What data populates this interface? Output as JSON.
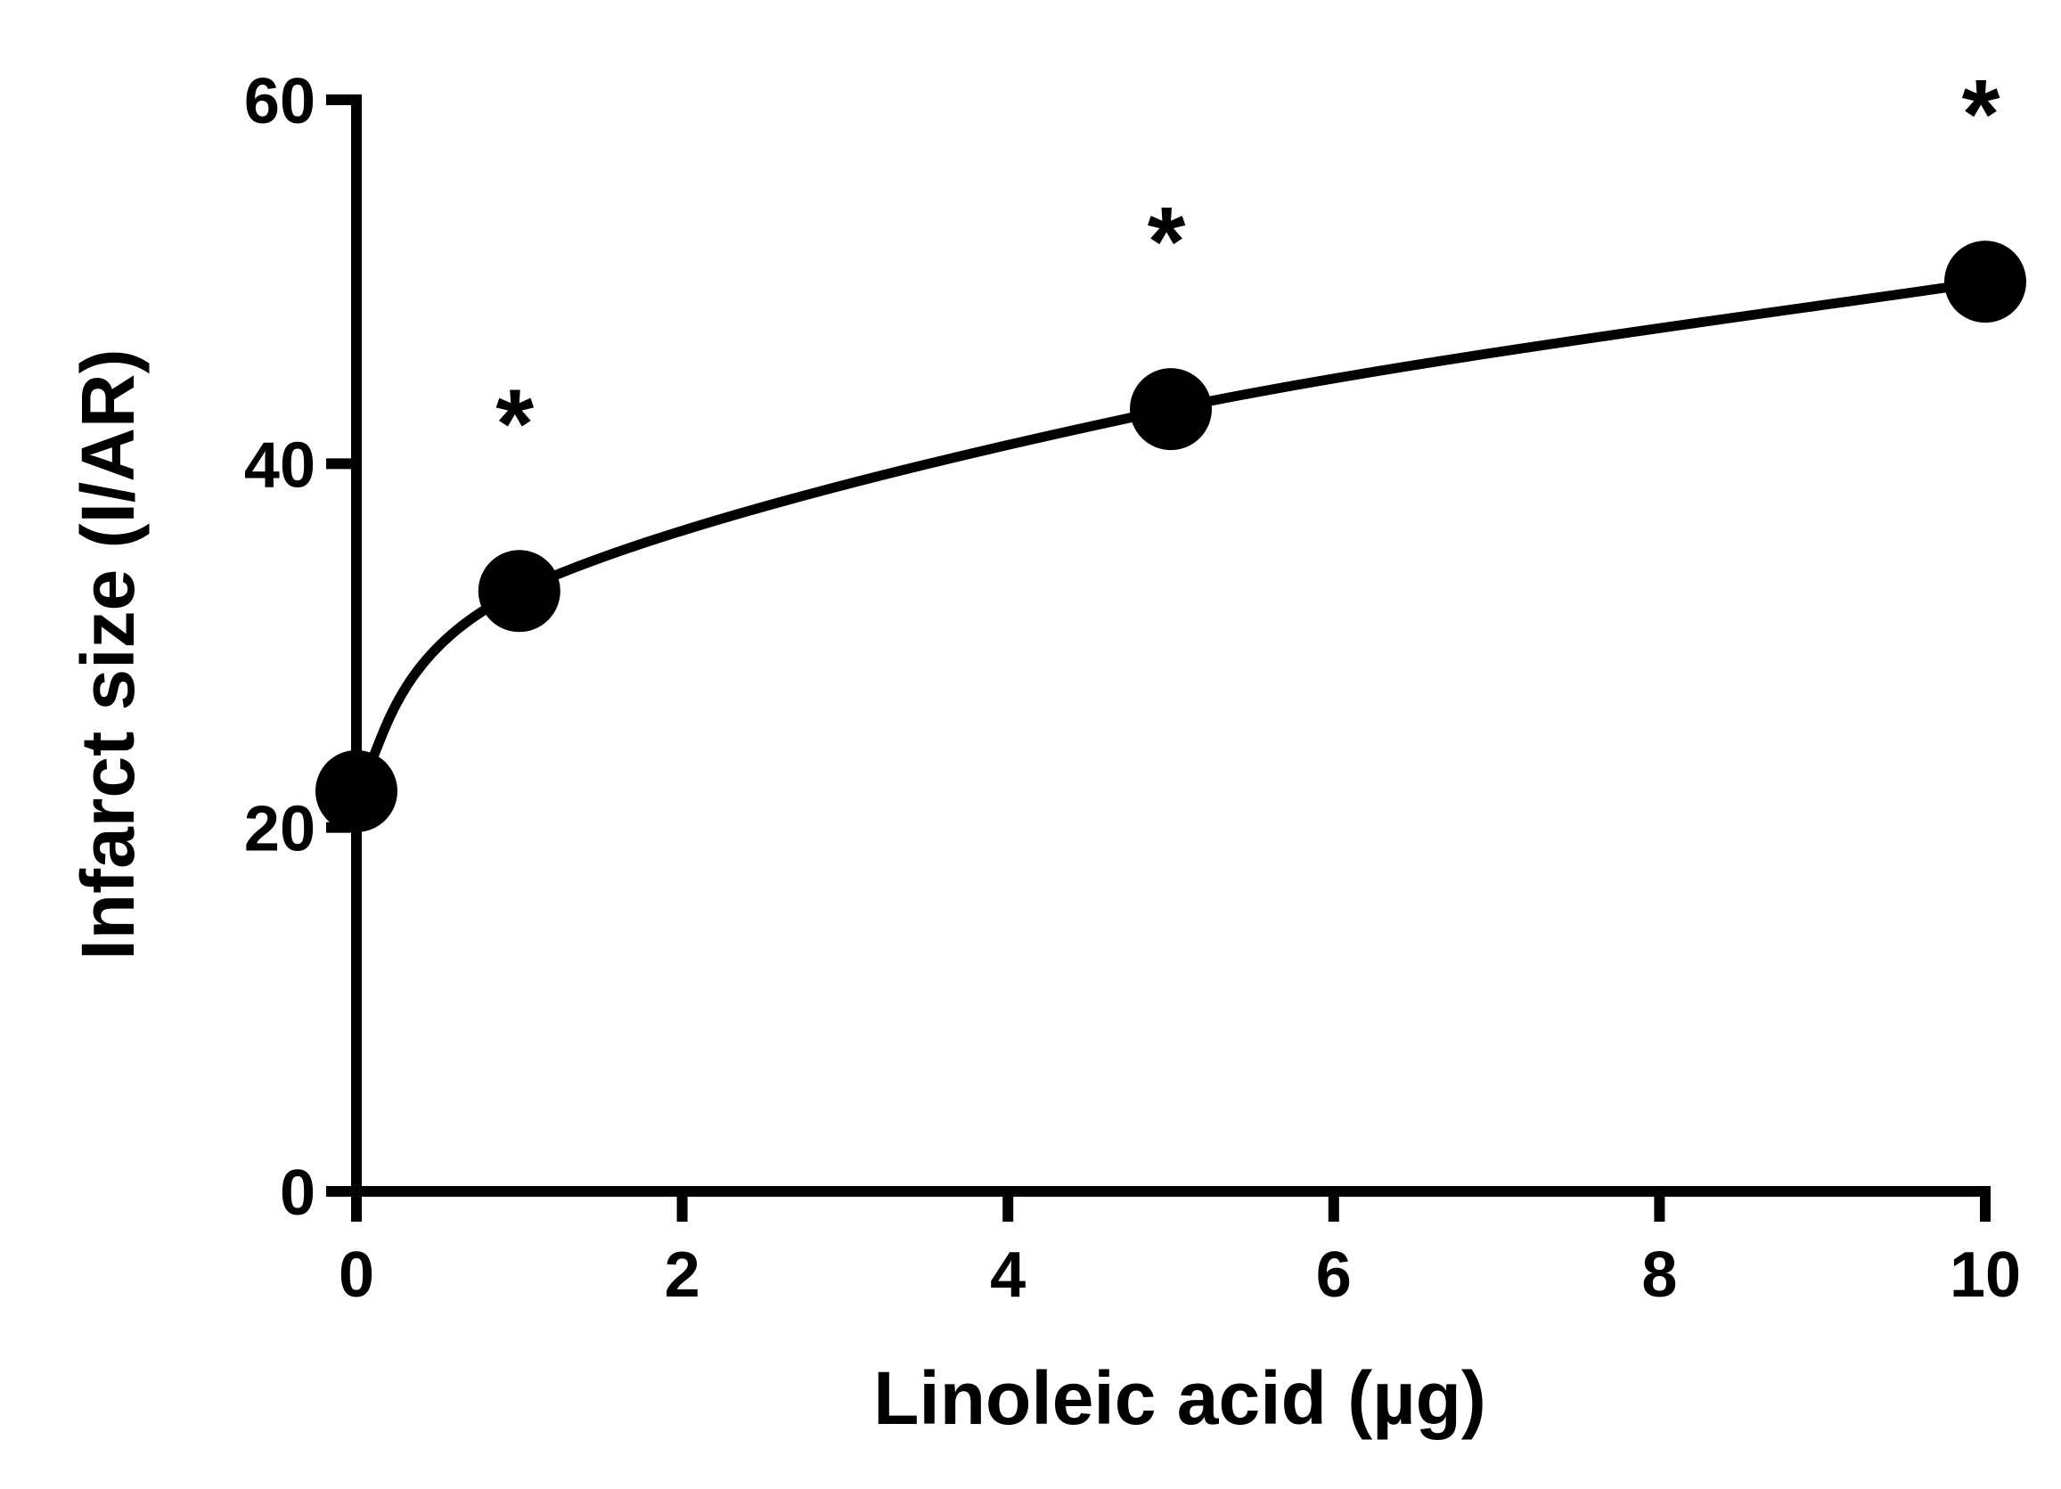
{
  "chart_data": {
    "type": "line",
    "xlabel": "Linoleic acid (µg)",
    "ylabel": "Infarct size (I/AR)",
    "xlim": [
      0,
      10
    ],
    "ylim": [
      0,
      60
    ],
    "xticks": [
      "0",
      "2",
      "4",
      "6",
      "8",
      "10"
    ],
    "yticks": [
      "0",
      "20",
      "40",
      "60"
    ],
    "grid": false,
    "series": [
      {
        "x": [
          0,
          1,
          5,
          10
        ],
        "y": [
          22,
          33,
          43,
          50
        ],
        "markers": "filled-circle",
        "annotations": [
          "",
          "*",
          "*",
          "*"
        ]
      }
    ]
  }
}
